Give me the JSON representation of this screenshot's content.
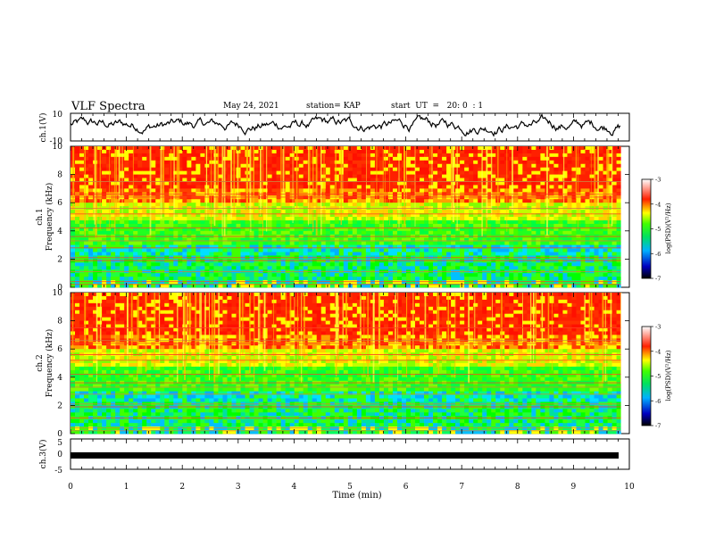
{
  "header": {
    "title": "VLF Spectra",
    "date": "May 24, 2021",
    "station": "station= KAP",
    "start": "start  UT  =   20: 0  : 1"
  },
  "colors": {
    "spec_low": "#000080",
    "spec_mid": "#00e000",
    "spec_high": "#ff2000"
  },
  "chart_data": [
    {
      "type": "line",
      "name": "ch1-waveform",
      "ylabel": "ch.1(V)",
      "ylim": [
        -10,
        10
      ],
      "yticks": [
        "10",
        "-10"
      ],
      "xlim": [
        0,
        10
      ],
      "grid": false
    },
    {
      "type": "heatmap",
      "name": "ch1-spectrogram",
      "ylabel": "ch.1\nFrequency (kHz)",
      "ylabel_lines": [
        "ch.1",
        "Frequency (kHz)"
      ],
      "ylim": [
        0,
        10
      ],
      "yticks": [
        "0",
        "2",
        "4",
        "6",
        "8",
        "10"
      ],
      "xlim": [
        0,
        9.85
      ],
      "colorbar": {
        "label": "log(PSD)(V²/Hz)",
        "ticks": [
          "-3",
          "-4",
          "-5",
          "-6",
          "-7"
        ],
        "range": [
          -7,
          -3
        ]
      }
    },
    {
      "type": "heatmap",
      "name": "ch2-spectrogram",
      "ylabel": "ch.2\nFrequency (kHz)",
      "ylabel_lines": [
        "ch.2",
        "Frequency (kHz)"
      ],
      "ylim": [
        0,
        10
      ],
      "yticks": [
        "0",
        "2",
        "4",
        "6",
        "8",
        "10"
      ],
      "xlim": [
        0,
        9.85
      ],
      "colorbar": {
        "label": "log(PSD)(V²/Hz)",
        "ticks": [
          "-3",
          "-4",
          "-5",
          "-6",
          "-7"
        ],
        "range": [
          -7,
          -3
        ]
      }
    },
    {
      "type": "line",
      "name": "ch3-waveform",
      "ylabel": "ch.3(V)",
      "ylim": [
        -5,
        5
      ],
      "yticks": [
        "5",
        "0",
        "-5"
      ],
      "xlim": [
        0,
        10
      ],
      "grid": false
    }
  ],
  "xaxis": {
    "label": "Time (min)",
    "ticks": [
      "0",
      "1",
      "2",
      "3",
      "4",
      "5",
      "6",
      "7",
      "8",
      "9",
      "10"
    ],
    "range": [
      0,
      10
    ]
  }
}
